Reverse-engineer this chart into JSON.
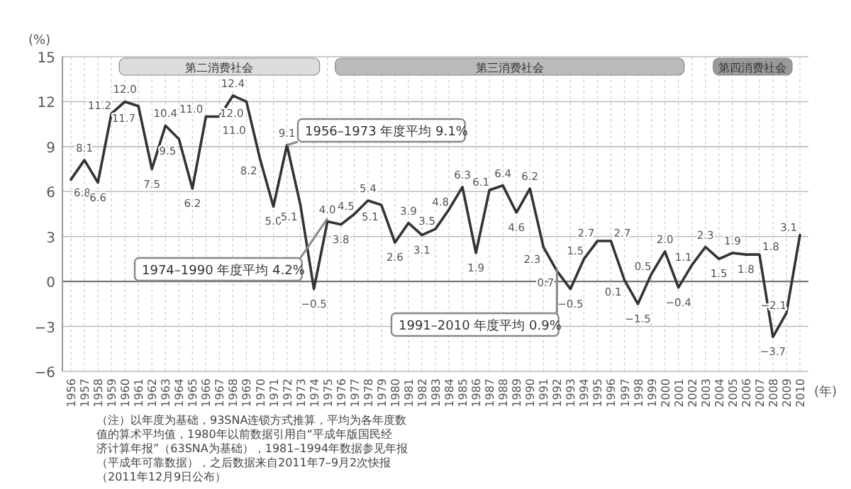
{
  "chart_data": {
    "type": "line",
    "ylabel": "(%)",
    "xlabel": "(年)",
    "categories": [
      "1956",
      "1957",
      "1958",
      "1959",
      "1960",
      "1961",
      "1962",
      "1963",
      "1964",
      "1965",
      "1966",
      "1967",
      "1968",
      "1969",
      "1970",
      "1971",
      "1972",
      "1973",
      "1974",
      "1975",
      "1976",
      "1977",
      "1978",
      "1979",
      "1980",
      "1981",
      "1982",
      "1983",
      "1984",
      "1985",
      "1986",
      "1987",
      "1988",
      "1989",
      "1990",
      "1991",
      "1992",
      "1993",
      "1994",
      "1995",
      "1996",
      "1997",
      "1998",
      "1999",
      "2000",
      "2001",
      "2002",
      "2003",
      "2004",
      "2005",
      "2006",
      "2007",
      "2008",
      "2009",
      "2010"
    ],
    "series": [
      {
        "color": "#333333",
        "values": [
          6.8,
          8.1,
          6.6,
          11.2,
          12.0,
          11.7,
          7.5,
          10.4,
          9.5,
          6.2,
          11.0,
          11.0,
          12.4,
          12.0,
          8.2,
          5.0,
          9.1,
          5.1,
          -0.5,
          4.0,
          3.8,
          4.5,
          5.4,
          5.1,
          2.6,
          3.9,
          3.1,
          3.5,
          4.8,
          6.3,
          1.9,
          6.1,
          6.4,
          4.6,
          6.2,
          2.3,
          0.7,
          -0.5,
          1.5,
          2.7,
          2.7,
          0.1,
          -1.5,
          0.5,
          2.0,
          -0.4,
          1.1,
          2.3,
          1.5,
          1.9,
          1.8,
          1.8,
          -3.7,
          -2.1,
          3.1
        ],
        "value_labels": [
          "6.8",
          "8.1",
          "6.6",
          "11.2",
          "12.0",
          "11.7",
          "7.5",
          "10.4",
          "9.5",
          "6.2",
          "11.0",
          "11.0",
          "12.4",
          "12.0",
          "8.2",
          "5.0",
          "9.1",
          "5.1",
          "−0.5",
          "4.0",
          "3.8",
          "4.5",
          "5.4",
          "5.1",
          "2.6",
          "3.9",
          "3.1",
          "3.5",
          "4.8",
          "6.3",
          "1.9",
          "6.1",
          "6.4",
          "4.6",
          "6.2",
          "2.3",
          "0.7",
          "−0.5",
          "1.5",
          "2.7",
          "2.7",
          "0.1",
          "−1.5",
          "0.5",
          "2.0",
          "−0.4",
          "1.1",
          "2.3",
          "1.5",
          "1.9",
          "1.8",
          "1.8",
          "−3.7",
          "−2.1",
          "3.1"
        ]
      }
    ],
    "marker": "none",
    "line_style": "solid",
    "grid": true,
    "ylim": [
      -6,
      15
    ],
    "yticks": [
      {
        "value": -6,
        "label": "−6"
      },
      {
        "value": -3,
        "label": "−3"
      },
      0,
      3,
      6,
      9,
      12,
      15
    ],
    "bands": [
      {
        "axis": "x",
        "from": "1960",
        "to": "1974",
        "label": "第二消费社会",
        "color": "#dddddd"
      },
      {
        "axis": "x",
        "from": "1976",
        "to": "2001",
        "label": "第三消费社会",
        "color": "#bbbbbb"
      },
      {
        "axis": "x",
        "from": "2004",
        "to": "2009",
        "label": "第四消费社会",
        "color": "#999999"
      }
    ],
    "annotations": [
      {
        "text": "1956–1973 年度平均 9.1%",
        "x": "1972",
        "y": 9.1
      },
      {
        "text": "1974–1990 年度平均 4.2%",
        "x": "1975",
        "y": 4.2
      },
      {
        "text": "1991–2010 年度平均 0.9%",
        "x": "1992",
        "y": 0.9
      },
      "（注）以年度为基础，93SNA连锁方式推算，平均为各年度数",
      "值的算术平均值，1980年以前数据引用自“平成年版国民经",
      "济计算年报”（63SNA为基础），1981–1994年数据参见年报",
      "（平成年可靠数据），之后数据来自2011年7–9月2次快报",
      "（2011年12月9日公布）"
    ]
  }
}
